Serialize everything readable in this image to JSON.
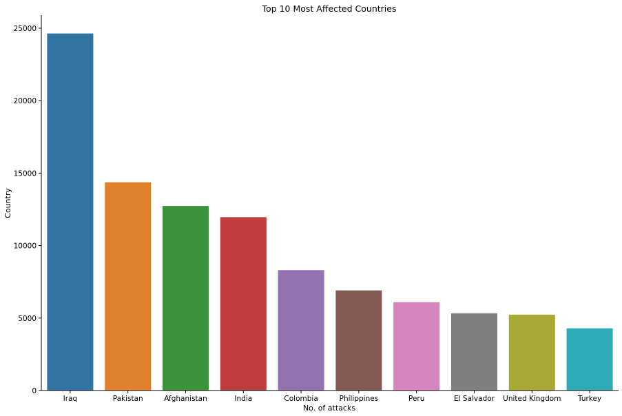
{
  "chart_data": {
    "type": "bar",
    "title": "Top 10 Most Affected Countries",
    "xlabel": "No. of attacks",
    "ylabel": "Country",
    "categories": [
      "Iraq",
      "Pakistan",
      "Afghanistan",
      "India",
      "Colombia",
      "Philippines",
      "Peru",
      "El Salvador",
      "United Kingdom",
      "Turkey"
    ],
    "values": [
      24636,
      14368,
      12731,
      11960,
      8306,
      6908,
      6096,
      5320,
      5235,
      4292
    ],
    "colors": [
      "#3274a1",
      "#e1812c",
      "#3a923a",
      "#c03d3e",
      "#9372b2",
      "#845b53",
      "#d684bd",
      "#7f7f7f",
      "#a9aa35",
      "#2eabb8"
    ],
    "ylim": [
      0,
      25900
    ],
    "yticks": [
      0,
      5000,
      10000,
      15000,
      20000,
      25000
    ],
    "grid": false,
    "legend": "none"
  }
}
